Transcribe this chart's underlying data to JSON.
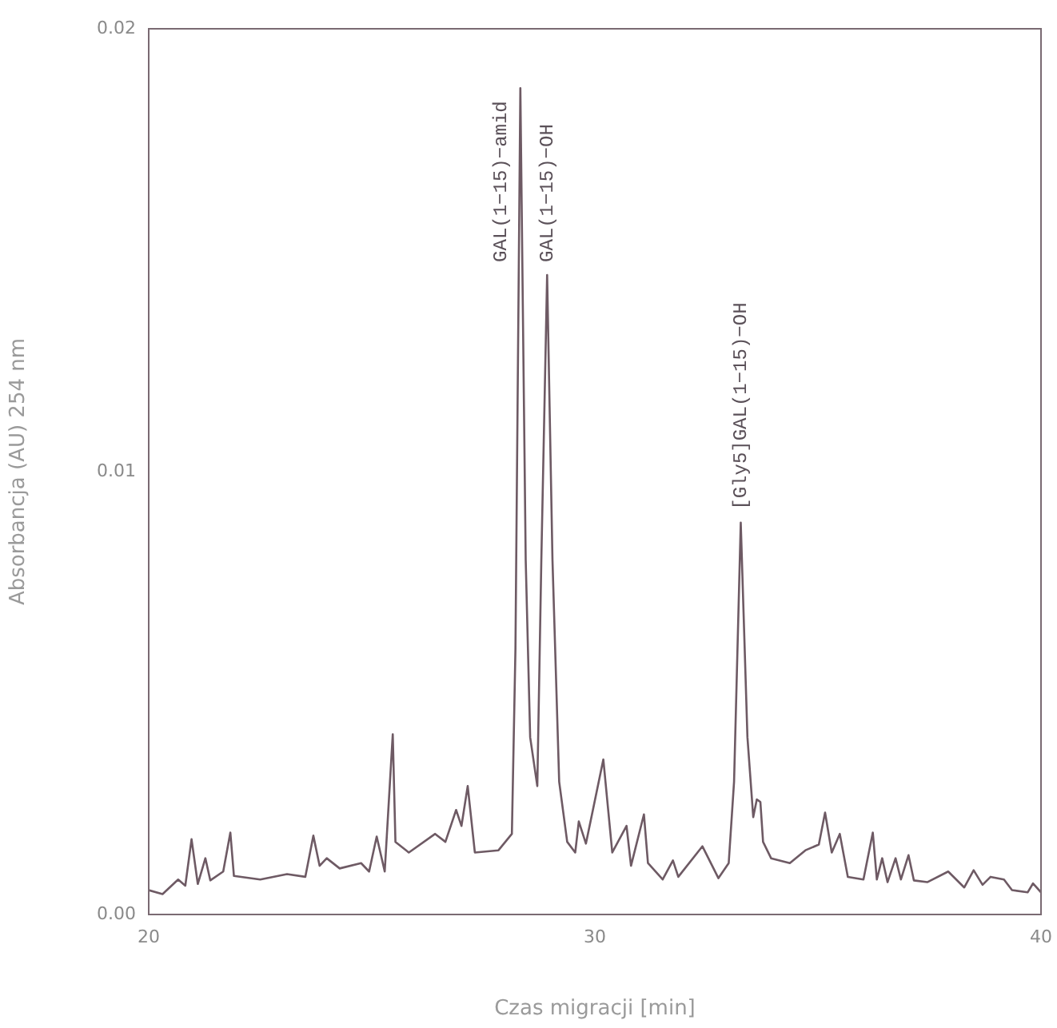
{
  "chart_data": {
    "type": "line",
    "xlabel": "Czas migracji [min]",
    "ylabel": "Absorbancja (AU) 254 nm",
    "xlim": [
      20,
      40
    ],
    "xticks": [
      20,
      30,
      40
    ],
    "ylim": [
      0,
      0.02
    ],
    "yticks": [
      {
        "value": 0,
        "label": "0.00"
      },
      {
        "value": 0.01,
        "label": "0.01"
      },
      {
        "value": 0.02,
        "label": "0.02"
      }
    ],
    "grid": false,
    "legend": false,
    "marker": "none",
    "line_style": "solid",
    "annotations": [
      {
        "text": "GAL(1−15)−amid",
        "x": 28.33,
        "y": 0.01866
      },
      {
        "text": "GAL(1−15)−OH",
        "x": 28.93,
        "y": 0.01444
      },
      {
        "text": "[Gly5]GAL(1−15)−OH",
        "x": 33.27,
        "y": 0.00885
      }
    ],
    "series": [
      {
        "color": "#6e5a64",
        "x": [
          20.0,
          20.31,
          20.66,
          20.82,
          20.96,
          21.1,
          21.27,
          21.38,
          21.67,
          21.83,
          21.91,
          22.5,
          23.1,
          23.51,
          23.69,
          23.83,
          23.99,
          24.28,
          24.76,
          24.94,
          25.11,
          25.29,
          25.47,
          25.53,
          25.83,
          26.42,
          26.65,
          26.89,
          27.01,
          27.15,
          27.31,
          27.84,
          28.14,
          28.22,
          28.33,
          28.45,
          28.55,
          28.71,
          28.8,
          28.93,
          29.05,
          29.2,
          29.38,
          29.56,
          29.64,
          29.8,
          30.19,
          30.39,
          30.71,
          30.81,
          31.1,
          31.19,
          31.52,
          31.75,
          31.87,
          32.41,
          32.77,
          33.0,
          33.12,
          33.27,
          33.42,
          33.55,
          33.63,
          33.71,
          33.77,
          33.95,
          34.37,
          34.72,
          35.02,
          35.16,
          35.31,
          35.49,
          35.67,
          36.02,
          36.23,
          36.32,
          36.44,
          36.56,
          36.74,
          36.86,
          37.03,
          37.15,
          37.45,
          37.92,
          38.28,
          38.49,
          38.69,
          38.87,
          39.17,
          39.35,
          39.7,
          39.82,
          40.0
        ],
        "values": [
          0.00055,
          0.00046,
          0.00079,
          0.00065,
          0.0017,
          0.00069,
          0.00127,
          0.00077,
          0.00097,
          0.00185,
          0.00087,
          0.00079,
          0.00091,
          0.00085,
          0.00178,
          0.0011,
          0.00127,
          0.00104,
          0.00116,
          0.00097,
          0.00176,
          0.00097,
          0.00407,
          0.00164,
          0.0014,
          0.00182,
          0.00164,
          0.00236,
          0.002,
          0.0029,
          0.0014,
          0.00145,
          0.00182,
          0.006,
          0.01866,
          0.008,
          0.004,
          0.0029,
          0.008,
          0.01444,
          0.008,
          0.003,
          0.00164,
          0.0014,
          0.0021,
          0.0016,
          0.0035,
          0.0014,
          0.002,
          0.0011,
          0.00226,
          0.00116,
          0.00079,
          0.00122,
          0.00085,
          0.00154,
          0.00082,
          0.00116,
          0.003,
          0.00885,
          0.004,
          0.0022,
          0.0026,
          0.00254,
          0.00164,
          0.00127,
          0.00116,
          0.00145,
          0.00158,
          0.0023,
          0.0014,
          0.00182,
          0.00085,
          0.00079,
          0.00185,
          0.00079,
          0.00127,
          0.00073,
          0.00127,
          0.00079,
          0.00134,
          0.00077,
          0.00073,
          0.00097,
          0.00061,
          0.001,
          0.00067,
          0.00085,
          0.00079,
          0.00055,
          0.0005,
          0.0007,
          0.0005
        ]
      }
    ]
  }
}
